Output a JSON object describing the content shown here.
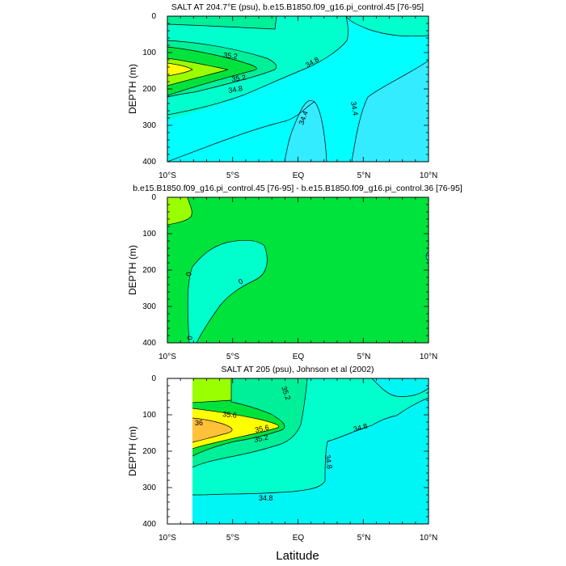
{
  "colors": {
    "s342": "#33ecff",
    "s346": "#46e8e8",
    "s350": "#00ffff",
    "s348": "#00f5f5",
    "s352": "#00ffcc",
    "s354": "#00ef99",
    "s356": "#00e33c",
    "s360": "#9aff00",
    "s364": "#ffff00",
    "s368": "#ffc03a",
    "blank": "#ffffff"
  },
  "chart_data": [
    {
      "type": "contour",
      "title": "SALT AT 204.7°E (psu), b.e15.B1850.f09_g16.pi_control.45 [76-95]",
      "xlabel": "",
      "ylabel": "DEPTH (m)",
      "x_ticks": [
        "10°S",
        "5°S",
        "EQ",
        "5°N",
        "10°N"
      ],
      "y_ticks": [
        "0",
        "100",
        "200",
        "300",
        "400"
      ],
      "xlim": [
        -10,
        10
      ],
      "ylim": [
        400,
        0
      ],
      "contour_levels": [
        34.4,
        34.8,
        35.2
      ],
      "contour_labels": [
        "35.2",
        "34.8",
        "35.2",
        "34.8",
        "34.4",
        "34.4"
      ],
      "max_region": {
        "lat": -9,
        "depth": 140,
        "value": 35.6
      },
      "min_region": {
        "lat": 1,
        "depth": 350,
        "value": 34.2
      }
    },
    {
      "type": "contour",
      "title": "b.e15.B1850.f09_g16.pi_control.45 [76-95] - b.e15.B1850.f09_g16.pi_control.36 [76-95]",
      "xlabel": "",
      "ylabel": "DEPTH (m)",
      "x_ticks": [
        "10°S",
        "5°S",
        "EQ",
        "5°N",
        "10°N"
      ],
      "y_ticks": [
        "0",
        "100",
        "200",
        "300",
        "400"
      ],
      "xlim": [
        -10,
        10
      ],
      "ylim": [
        400,
        0
      ],
      "contour_levels": [
        0
      ],
      "contour_labels": [
        "0",
        "0",
        "0"
      ],
      "positive_region": {
        "lat": -9.5,
        "depth": 40
      },
      "negative_region": {
        "lat": -5.5,
        "depth": 250
      }
    },
    {
      "type": "contour",
      "title": "SALT AT 205 (psu), Johnson et al (2002)",
      "xlabel": "Latitude",
      "ylabel": "DEPTH (m)",
      "x_ticks": [
        "10°S",
        "5°S",
        "EQ",
        "5°N",
        "10°N"
      ],
      "y_ticks": [
        "0",
        "100",
        "200",
        "300",
        "400"
      ],
      "xlim": [
        -10,
        10
      ],
      "ylim": [
        400,
        0
      ],
      "data_start_lat": -8,
      "contour_levels": [
        34.8,
        35.2,
        35.6,
        36.0
      ],
      "contour_labels": [
        "35.2",
        "35.6",
        "36",
        "35.6",
        "35.2",
        "34.8",
        "34.8",
        "34.8"
      ],
      "max_region": {
        "lat": -7.5,
        "depth": 145,
        "value": 36.2
      }
    }
  ]
}
